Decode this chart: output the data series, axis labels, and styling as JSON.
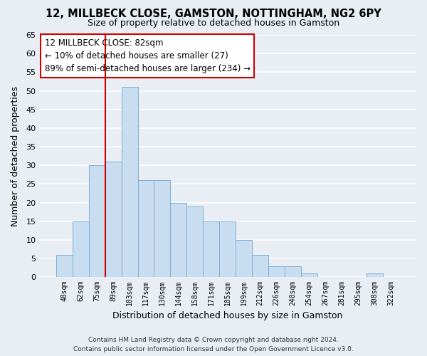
{
  "title": "12, MILLBECK CLOSE, GAMSTON, NOTTINGHAM, NG2 6PY",
  "subtitle": "Size of property relative to detached houses in Gamston",
  "xlabel": "Distribution of detached houses by size in Gamston",
  "ylabel": "Number of detached properties",
  "bar_color": "#c8ddf0",
  "bar_edge_color": "#7bafd4",
  "background_color": "#e8eef4",
  "grid_color": "#ffffff",
  "categories": [
    "48sqm",
    "62sqm",
    "75sqm",
    "89sqm",
    "103sqm",
    "117sqm",
    "130sqm",
    "144sqm",
    "158sqm",
    "171sqm",
    "185sqm",
    "199sqm",
    "212sqm",
    "226sqm",
    "240sqm",
    "254sqm",
    "267sqm",
    "281sqm",
    "295sqm",
    "308sqm",
    "322sqm"
  ],
  "values": [
    6,
    15,
    30,
    31,
    51,
    26,
    26,
    20,
    19,
    15,
    15,
    10,
    6,
    3,
    3,
    1,
    0,
    0,
    0,
    1,
    0
  ],
  "ylim": [
    0,
    65
  ],
  "yticks": [
    0,
    5,
    10,
    15,
    20,
    25,
    30,
    35,
    40,
    45,
    50,
    55,
    60,
    65
  ],
  "annotation_title": "12 MILLBECK CLOSE: 82sqm",
  "annotation_line1": "← 10% of detached houses are smaller (27)",
  "annotation_line2": "89% of semi-detached houses are larger (234) →",
  "marker_color": "#cc0000",
  "footer1": "Contains HM Land Registry data © Crown copyright and database right 2024.",
  "footer2": "Contains public sector information licensed under the Open Government Licence v3.0."
}
